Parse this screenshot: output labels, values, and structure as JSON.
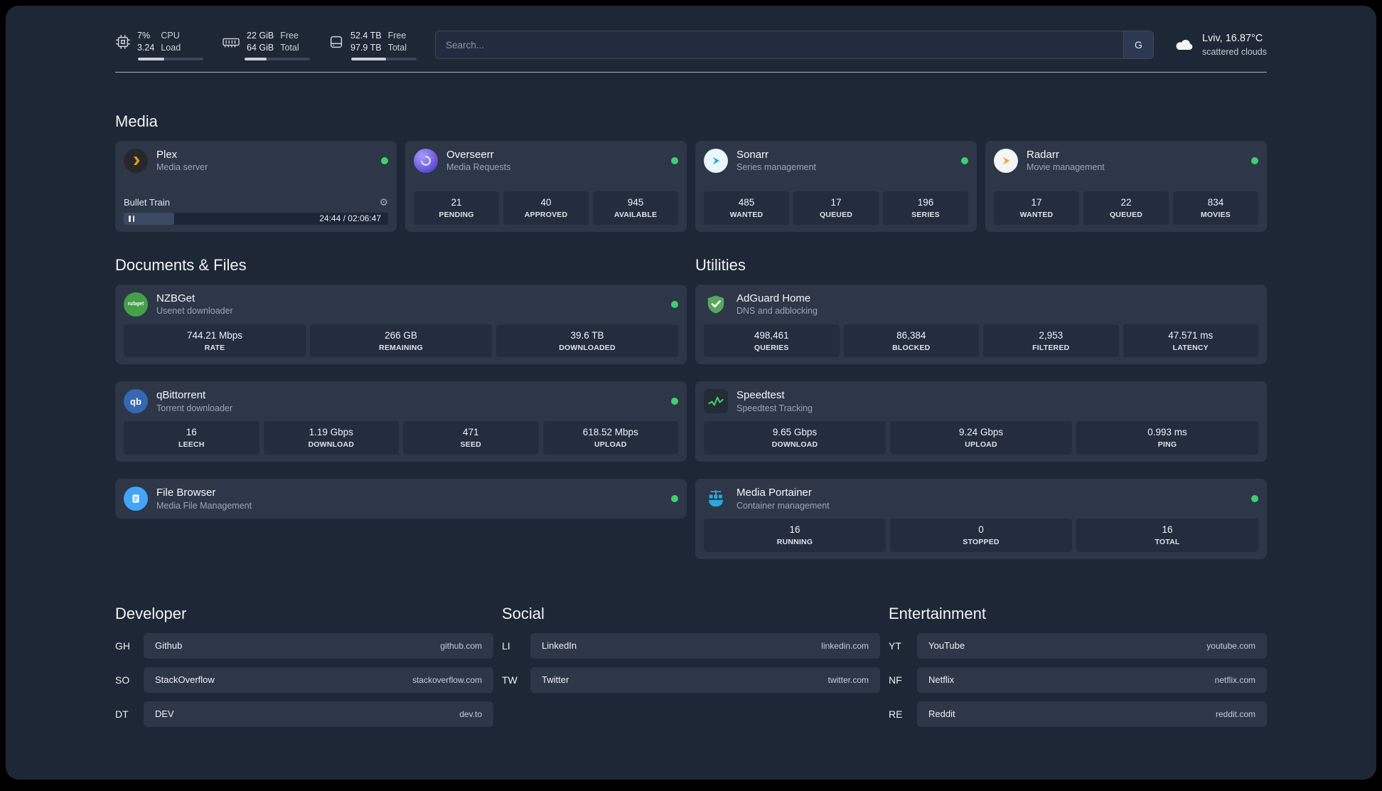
{
  "header": {
    "cpu": {
      "value": "7%",
      "load": "3.24",
      "label_top": "CPU",
      "label_bottom": "Load",
      "progress": 40
    },
    "ram": {
      "free": "22 GiB",
      "total": "64 GiB",
      "label_top": "Free",
      "label_bottom": "Total",
      "progress": 34
    },
    "disk": {
      "free": "52.4 TB",
      "total": "97.9 TB",
      "label_top": "Free",
      "label_bottom": "Total",
      "progress": 53
    },
    "search": {
      "placeholder": "Search...",
      "engine_button": "G"
    },
    "weather": {
      "location": "Lviv, 16.87°C",
      "condition": "scattered clouds"
    }
  },
  "media": {
    "title": "Media",
    "plex": {
      "name": "Plex",
      "subtitle": "Media server",
      "status": "online",
      "now_playing": "Bullet Train",
      "elapsed": "24:44 / 02:06:47",
      "progress": 19
    },
    "overseerr": {
      "name": "Overseerr",
      "subtitle": "Media Requests",
      "status": "online",
      "stats": [
        {
          "value": "21",
          "label": "PENDING"
        },
        {
          "value": "40",
          "label": "APPROVED"
        },
        {
          "value": "945",
          "label": "AVAILABLE"
        }
      ]
    },
    "sonarr": {
      "name": "Sonarr",
      "subtitle": "Series management",
      "status": "online",
      "stats": [
        {
          "value": "485",
          "label": "WANTED"
        },
        {
          "value": "17",
          "label": "QUEUED"
        },
        {
          "value": "196",
          "label": "SERIES"
        }
      ]
    },
    "radarr": {
      "name": "Radarr",
      "subtitle": "Movie management",
      "status": "online",
      "stats": [
        {
          "value": "17",
          "label": "WANTED"
        },
        {
          "value": "22",
          "label": "QUEUED"
        },
        {
          "value": "834",
          "label": "MOVIES"
        }
      ]
    }
  },
  "documents": {
    "title": "Documents & Files",
    "nzbget": {
      "name": "NZBGet",
      "subtitle": "Usenet downloader",
      "status": "online",
      "stats": [
        {
          "value": "744.21 Mbps",
          "label": "RATE"
        },
        {
          "value": "266 GB",
          "label": "REMAINING"
        },
        {
          "value": "39.6 TB",
          "label": "DOWNLOADED"
        }
      ]
    },
    "qbittorrent": {
      "name": "qBittorrent",
      "subtitle": "Torrent downloader",
      "status": "online",
      "stats": [
        {
          "value": "16",
          "label": "LEECH"
        },
        {
          "value": "1.19 Gbps",
          "label": "DOWNLOAD"
        },
        {
          "value": "471",
          "label": "SEED"
        },
        {
          "value": "618.52 Mbps",
          "label": "UPLOAD"
        }
      ]
    },
    "filebrowser": {
      "name": "File Browser",
      "subtitle": "Media File Management",
      "status": "online"
    }
  },
  "utilities": {
    "title": "Utilities",
    "adguard": {
      "name": "AdGuard Home",
      "subtitle": "DNS and adblocking",
      "stats": [
        {
          "value": "498,461",
          "label": "QUERIES"
        },
        {
          "value": "86,384",
          "label": "BLOCKED"
        },
        {
          "value": "2,953",
          "label": "FILTERED"
        },
        {
          "value": "47.571 ms",
          "label": "LATENCY"
        }
      ]
    },
    "speedtest": {
      "name": "Speedtest",
      "subtitle": "Speedtest Tracking",
      "stats": [
        {
          "value": "9.65 Gbps",
          "label": "DOWNLOAD"
        },
        {
          "value": "9.24 Gbps",
          "label": "UPLOAD"
        },
        {
          "value": "0.993 ms",
          "label": "PING"
        }
      ]
    },
    "portainer": {
      "name": "Media Portainer",
      "subtitle": "Container management",
      "status": "online",
      "stats": [
        {
          "value": "16",
          "label": "RUNNING"
        },
        {
          "value": "0",
          "label": "STOPPED"
        },
        {
          "value": "16",
          "label": "TOTAL"
        }
      ]
    }
  },
  "bookmarks": {
    "developer": {
      "title": "Developer",
      "items": [
        {
          "abbr": "GH",
          "name": "Github",
          "url": "github.com"
        },
        {
          "abbr": "SO",
          "name": "StackOverflow",
          "url": "stackoverflow.com"
        },
        {
          "abbr": "DT",
          "name": "DEV",
          "url": "dev.to"
        }
      ]
    },
    "social": {
      "title": "Social",
      "items": [
        {
          "abbr": "LI",
          "name": "LinkedIn",
          "url": "linkedin.com"
        },
        {
          "abbr": "TW",
          "name": "Twitter",
          "url": "twitter.com"
        }
      ]
    },
    "entertainment": {
      "title": "Entertainment",
      "items": [
        {
          "abbr": "YT",
          "name": "YouTube",
          "url": "youtube.com"
        },
        {
          "abbr": "NF",
          "name": "Netflix",
          "url": "netflix.com"
        },
        {
          "abbr": "RE",
          "name": "Reddit",
          "url": "reddit.com"
        }
      ]
    }
  },
  "colors": {
    "background": "#1e2735",
    "card": "#2d3748",
    "tile": "#232d3e",
    "status_online": "#3ed06d",
    "plex_gold": "#e5a00d",
    "adguard_green": "#5ba65f",
    "portainer_blue": "#29a8dd"
  }
}
